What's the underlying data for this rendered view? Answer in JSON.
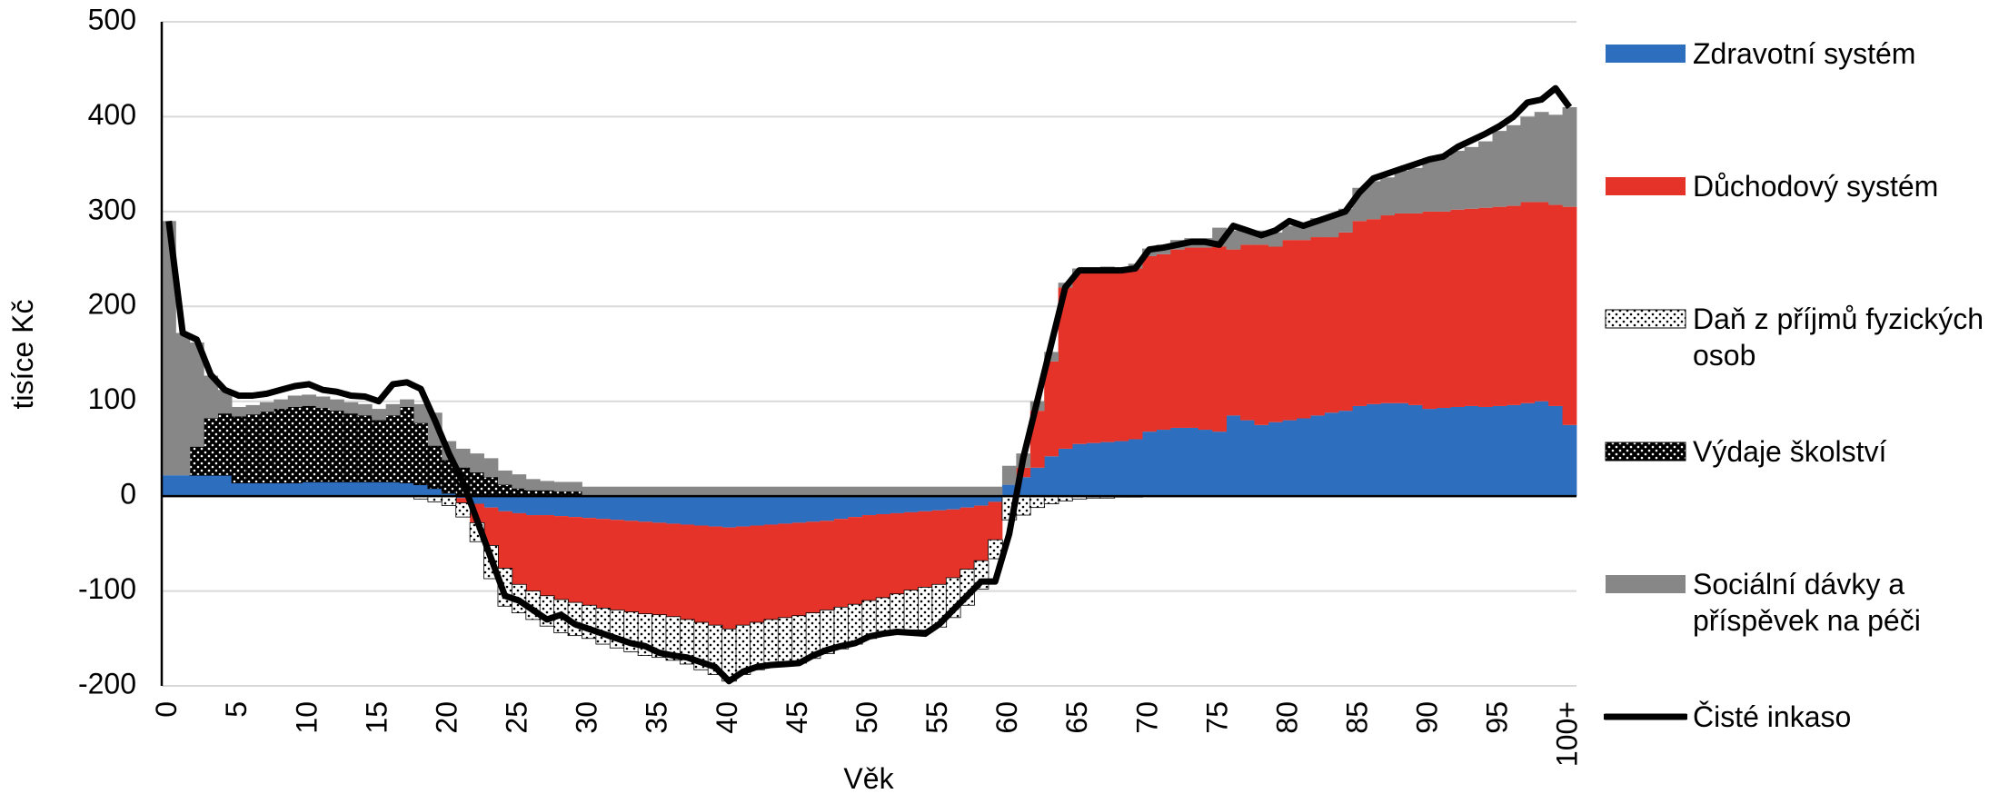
{
  "chart_data": {
    "type": "bar",
    "xlabel": "Věk",
    "ylabel": "tisíce Kč",
    "ylim": [
      -200,
      500
    ],
    "yticks": [
      -200,
      -100,
      0,
      100,
      200,
      300,
      400,
      500
    ],
    "grid": true,
    "legend": "right",
    "categories": [
      "0",
      null,
      null,
      null,
      null,
      "5",
      null,
      null,
      null,
      null,
      "10",
      null,
      null,
      null,
      null,
      "15",
      null,
      null,
      null,
      null,
      "20",
      null,
      null,
      null,
      null,
      "25",
      null,
      null,
      null,
      null,
      "30",
      null,
      null,
      null,
      null,
      "35",
      null,
      null,
      null,
      null,
      "40",
      null,
      null,
      null,
      null,
      "45",
      null,
      null,
      null,
      null,
      "50",
      null,
      null,
      null,
      null,
      "55",
      null,
      null,
      null,
      null,
      "60",
      null,
      null,
      null,
      null,
      "65",
      null,
      null,
      null,
      null,
      "70",
      null,
      null,
      null,
      null,
      "75",
      null,
      null,
      null,
      null,
      "80",
      null,
      null,
      null,
      null,
      "85",
      null,
      null,
      null,
      null,
      "90",
      null,
      null,
      null,
      null,
      "95",
      null,
      null,
      null,
      null,
      "100+"
    ],
    "series": [
      {
        "name": "Zdravotní systém",
        "color": "#2e6ebf",
        "values": [
          22,
          22,
          22,
          22,
          22,
          14,
          14,
          14,
          14,
          14,
          15,
          15,
          15,
          15,
          15,
          15,
          15,
          14,
          12,
          8,
          3,
          -2,
          -8,
          -12,
          -16,
          -18,
          -20,
          -20,
          -21,
          -22,
          -23,
          -24,
          -25,
          -26,
          -27,
          -28,
          -29,
          -30,
          -31,
          -32,
          -33,
          -32,
          -31,
          -30,
          -29,
          -28,
          -27,
          -26,
          -24,
          -22,
          -20,
          -19,
          -18,
          -17,
          -16,
          -15,
          -14,
          -12,
          -10,
          -6,
          12,
          20,
          30,
          42,
          50,
          55,
          56,
          57,
          58,
          60,
          68,
          70,
          72,
          72,
          70,
          68,
          85,
          80,
          75,
          78,
          80,
          82,
          85,
          88,
          90,
          95,
          97,
          98,
          98,
          96,
          92,
          93,
          94,
          95,
          94,
          95,
          96,
          98,
          100,
          95,
          75
        ]
      },
      {
        "name": "Důchodový systém",
        "color": "#e63329",
        "values": [
          0,
          0,
          0,
          0,
          0,
          0,
          0,
          0,
          0,
          0,
          0,
          0,
          0,
          0,
          0,
          0,
          0,
          0,
          0,
          0,
          0,
          -5,
          -20,
          -40,
          -60,
          -75,
          -80,
          -85,
          -88,
          -90,
          -92,
          -94,
          -95,
          -96,
          -97,
          -97,
          -98,
          -100,
          -102,
          -104,
          -107,
          -104,
          -102,
          -100,
          -99,
          -98,
          -96,
          -94,
          -93,
          -92,
          -90,
          -88,
          -85,
          -82,
          -80,
          -78,
          -72,
          -65,
          -58,
          -40,
          0,
          10,
          60,
          100,
          170,
          180,
          180,
          180,
          178,
          180,
          185,
          185,
          188,
          190,
          192,
          195,
          175,
          185,
          190,
          185,
          190,
          188,
          188,
          185,
          188,
          195,
          195,
          198,
          200,
          202,
          208,
          207,
          208,
          208,
          210,
          210,
          210,
          212,
          210,
          212,
          230
        ]
      },
      {
        "name": "Daň z příjmů fyzických osob",
        "color": "#ffffff",
        "pattern": "dots",
        "values": [
          0,
          0,
          0,
          0,
          0,
          0,
          0,
          0,
          0,
          0,
          0,
          0,
          0,
          0,
          0,
          0,
          0,
          0,
          -3,
          -6,
          -10,
          -15,
          -20,
          -35,
          -40,
          -30,
          -30,
          -32,
          -35,
          -35,
          -35,
          -38,
          -40,
          -42,
          -44,
          -45,
          -46,
          -47,
          -50,
          -52,
          -55,
          -52,
          -50,
          -48,
          -48,
          -50,
          -48,
          -46,
          -44,
          -42,
          -40,
          -40,
          -40,
          -42,
          -45,
          -45,
          -42,
          -38,
          -30,
          -20,
          -25,
          -20,
          -12,
          -8,
          -5,
          -3,
          -2,
          -2,
          -1,
          -1,
          0,
          0,
          0,
          0,
          0,
          0,
          0,
          0,
          0,
          0,
          0,
          0,
          0,
          0,
          0,
          0,
          0,
          0,
          0,
          0,
          0,
          0,
          0,
          0,
          0,
          0,
          0,
          0,
          0,
          0,
          0
        ]
      },
      {
        "name": "Výdaje školství",
        "color": "#000000",
        "pattern": "dots",
        "values": [
          0,
          0,
          30,
          60,
          65,
          70,
          72,
          75,
          78,
          80,
          80,
          78,
          75,
          72,
          70,
          65,
          70,
          80,
          65,
          45,
          35,
          30,
          25,
          20,
          12,
          8,
          6,
          6,
          5,
          5,
          0,
          0,
          0,
          0,
          0,
          0,
          0,
          0,
          0,
          0,
          0,
          0,
          0,
          0,
          0,
          0,
          0,
          0,
          0,
          0,
          0,
          0,
          0,
          0,
          0,
          0,
          0,
          0,
          0,
          0,
          0,
          0,
          0,
          0,
          0,
          0,
          0,
          0,
          0,
          0,
          0,
          0,
          0,
          0,
          0,
          0,
          0,
          0,
          0,
          0,
          0,
          0,
          0,
          0,
          0,
          0,
          0,
          0,
          0,
          0,
          0,
          0,
          0,
          0,
          0,
          0,
          0,
          0,
          0,
          0,
          0
        ]
      },
      {
        "name": "Sociální dávky a příspěvek na péči",
        "color": "#878787",
        "values": [
          268,
          150,
          110,
          45,
          25,
          10,
          10,
          10,
          10,
          12,
          12,
          12,
          12,
          12,
          12,
          12,
          12,
          8,
          20,
          35,
          20,
          20,
          20,
          20,
          15,
          15,
          12,
          10,
          10,
          10,
          10,
          10,
          10,
          10,
          10,
          10,
          10,
          10,
          10,
          10,
          10,
          10,
          10,
          10,
          10,
          10,
          10,
          10,
          10,
          10,
          10,
          10,
          10,
          10,
          10,
          10,
          10,
          10,
          10,
          10,
          20,
          15,
          10,
          10,
          5,
          5,
          5,
          5,
          5,
          5,
          8,
          10,
          10,
          10,
          10,
          20,
          20,
          15,
          15,
          15,
          15,
          18,
          20,
          22,
          25,
          35,
          40,
          40,
          45,
          48,
          55,
          58,
          62,
          65,
          70,
          80,
          85,
          90,
          95,
          95,
          105
        ]
      },
      {
        "name": "Čisté inkaso",
        "color": "#000000",
        "type": "line",
        "values": [
          290,
          172,
          165,
          128,
          112,
          106,
          106,
          108,
          112,
          116,
          118,
          112,
          110,
          106,
          105,
          100,
          118,
          120,
          113,
          80,
          45,
          15,
          -25,
          -65,
          -105,
          -110,
          -120,
          -130,
          -125,
          -135,
          -140,
          -145,
          -150,
          -155,
          -158,
          -165,
          -168,
          -170,
          -175,
          -180,
          -195,
          -185,
          -180,
          -178,
          -177,
          -176,
          -168,
          -162,
          -158,
          -155,
          -148,
          -145,
          -143,
          -144,
          -145,
          -135,
          -120,
          -105,
          -90,
          -90,
          -40,
          40,
          100,
          160,
          220,
          238,
          238,
          238,
          238,
          240,
          260,
          262,
          265,
          268,
          268,
          265,
          285,
          280,
          275,
          280,
          290,
          285,
          290,
          295,
          300,
          320,
          335,
          340,
          345,
          350,
          355,
          358,
          368,
          375,
          382,
          390,
          400,
          415,
          418,
          430,
          410
        ]
      }
    ]
  }
}
